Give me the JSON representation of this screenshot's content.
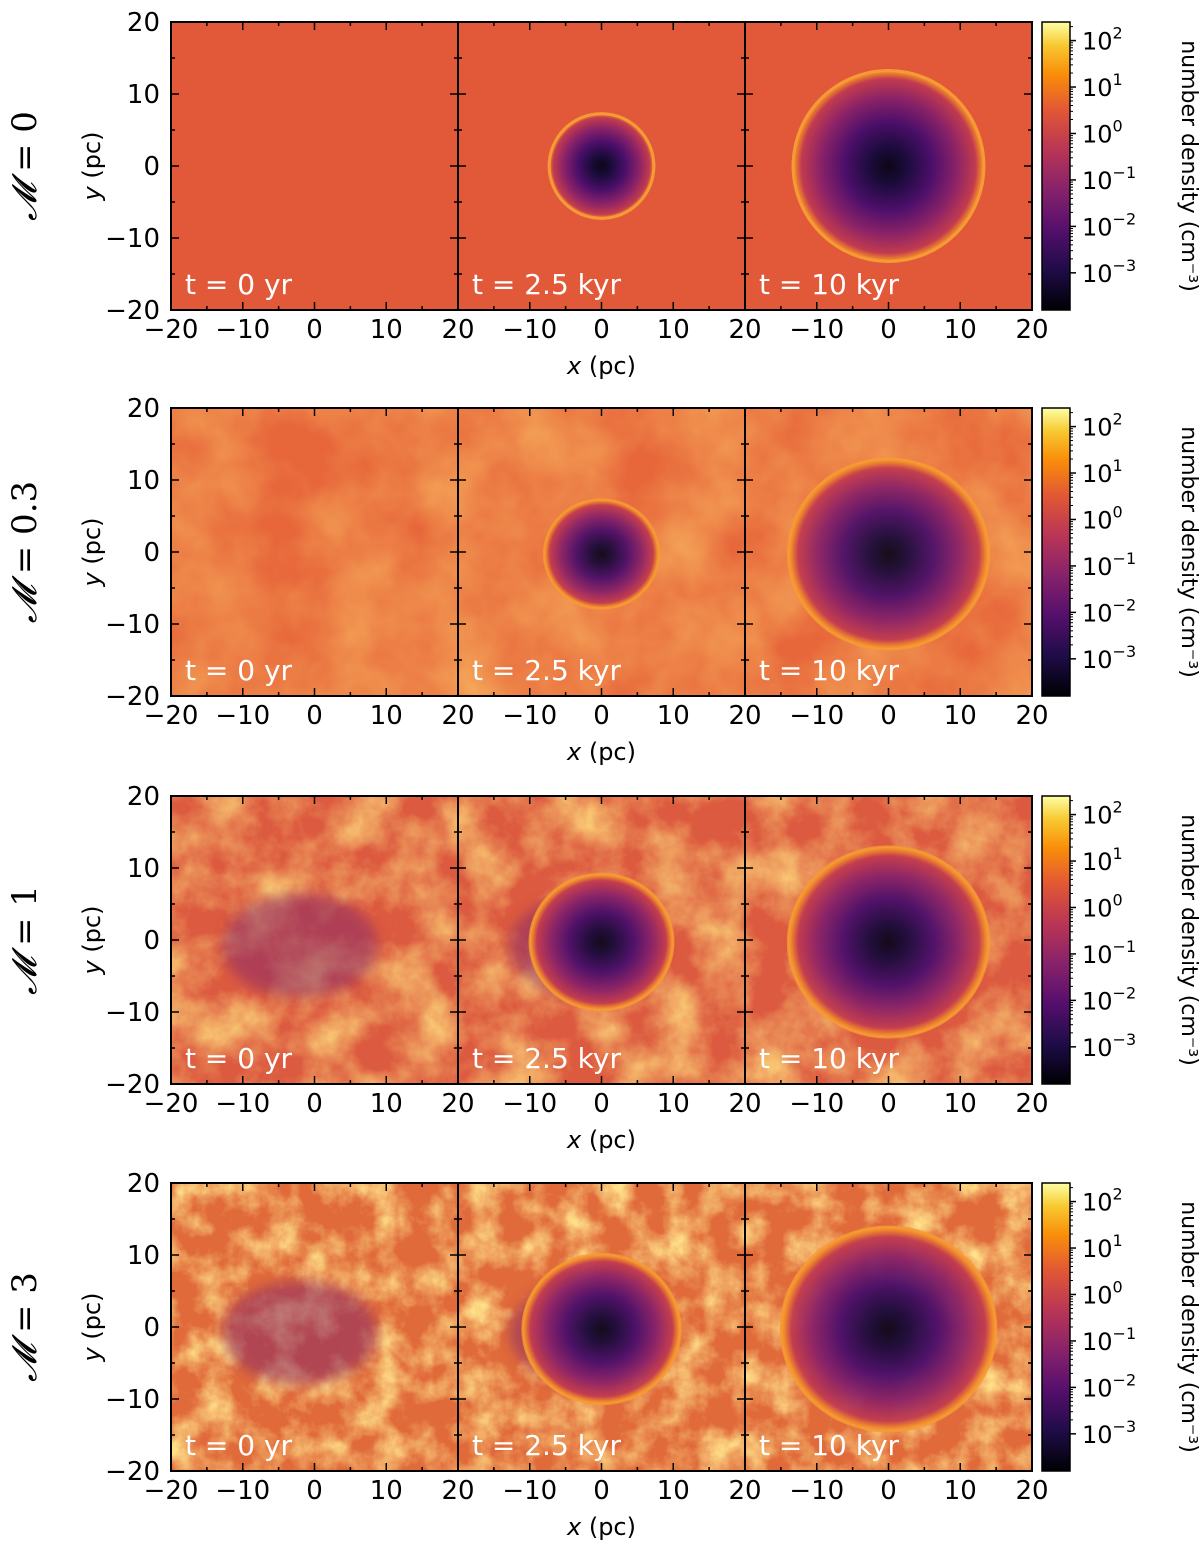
{
  "figure": {
    "colormap": "inferno",
    "colors": {
      "background": "#e2593a",
      "void": "#0d0717",
      "dense": "#fbe88a",
      "frame": "#000000",
      "panel_text": "#ffffff"
    }
  },
  "chart_data": [
    {
      "type": "heatmap",
      "row_label": "M = 0",
      "row_label_symbol": "𝓜",
      "row_label_value": "= 0",
      "xlabel_var": "x",
      "xlabel_unit": "(pc)",
      "ylabel_var": "y",
      "ylabel_unit": "(pc)",
      "xlim": [
        -20,
        20
      ],
      "ylim": [
        -20,
        20
      ],
      "xticks": [
        "−20",
        "−10",
        "0",
        "10",
        "20"
      ],
      "yticks": [
        "20",
        "10",
        "0",
        "−10",
        "−20"
      ],
      "panels": [
        {
          "time": "t = 0 yr",
          "bubble_radius_pc": 0
        },
        {
          "time": "t = 2.5 kyr",
          "bubble_radius_pc": 7.5
        },
        {
          "time": "t = 10 kyr",
          "bubble_radius_pc": 13.5
        }
      ],
      "colorbar": {
        "label": "number density (cm⁻³)",
        "scale": "log",
        "range_exp": [
          -3.8,
          2.4
        ],
        "ticks_exp": [
          "2",
          "1",
          "0",
          "−1",
          "−2",
          "−3"
        ]
      }
    },
    {
      "type": "heatmap",
      "row_label": "M = 0.3",
      "row_label_symbol": "𝓜",
      "row_label_value": "= 0.3",
      "xlabel_var": "x",
      "xlabel_unit": "(pc)",
      "ylabel_var": "y",
      "ylabel_unit": "(pc)",
      "xlim": [
        -20,
        20
      ],
      "ylim": [
        -20,
        20
      ],
      "xticks": [
        "−20",
        "−10",
        "0",
        "10",
        "20"
      ],
      "yticks": [
        "20",
        "10",
        "0",
        "−10",
        "−20"
      ],
      "panels": [
        {
          "time": "t = 0 yr",
          "bubble_radius_pc": 0
        },
        {
          "time": "t = 2.5 kyr",
          "bubble_radius_pc": 8
        },
        {
          "time": "t = 10 kyr",
          "bubble_radius_pc": 14
        }
      ],
      "colorbar": {
        "label": "number density (cm⁻³)",
        "scale": "log",
        "range_exp": [
          -3.8,
          2.4
        ],
        "ticks_exp": [
          "2",
          "1",
          "0",
          "−1",
          "−2",
          "−3"
        ]
      }
    },
    {
      "type": "heatmap",
      "row_label": "M = 1",
      "row_label_symbol": "𝓜",
      "row_label_value": "= 1",
      "xlabel_var": "x",
      "xlabel_unit": "(pc)",
      "ylabel_var": "y",
      "ylabel_unit": "(pc)",
      "xlim": [
        -20,
        20
      ],
      "ylim": [
        -20,
        20
      ],
      "xticks": [
        "−20",
        "−10",
        "0",
        "10",
        "20"
      ],
      "yticks": [
        "20",
        "10",
        "0",
        "−10",
        "−20"
      ],
      "panels": [
        {
          "time": "t = 0 yr",
          "bubble_radius_pc": 0
        },
        {
          "time": "t = 2.5 kyr",
          "bubble_radius_pc": 10
        },
        {
          "time": "t = 10 kyr",
          "bubble_radius_pc": 14
        }
      ],
      "colorbar": {
        "label": "number density (cm⁻³)",
        "scale": "log",
        "range_exp": [
          -3.8,
          2.4
        ],
        "ticks_exp": [
          "2",
          "1",
          "0",
          "−1",
          "−2",
          "−3"
        ]
      }
    },
    {
      "type": "heatmap",
      "row_label": "M = 3",
      "row_label_symbol": "𝓜",
      "row_label_value": "= 3",
      "xlabel_var": "x",
      "xlabel_unit": "(pc)",
      "ylabel_var": "y",
      "ylabel_unit": "(pc)",
      "xlim": [
        -20,
        20
      ],
      "ylim": [
        -20,
        20
      ],
      "xticks": [
        "−20",
        "−10",
        "0",
        "10",
        "20"
      ],
      "yticks": [
        "20",
        "10",
        "0",
        "−10",
        "−20"
      ],
      "panels": [
        {
          "time": "t = 0 yr",
          "bubble_radius_pc": 0
        },
        {
          "time": "t = 2.5 kyr",
          "bubble_radius_pc": 11
        },
        {
          "time": "t = 10 kyr",
          "bubble_radius_pc": 15
        }
      ],
      "colorbar": {
        "label": "number density (cm⁻³)",
        "scale": "log",
        "range_exp": [
          -3.8,
          2.4
        ],
        "ticks_exp": [
          "2",
          "1",
          "0",
          "−1",
          "−2",
          "−3"
        ]
      }
    }
  ]
}
